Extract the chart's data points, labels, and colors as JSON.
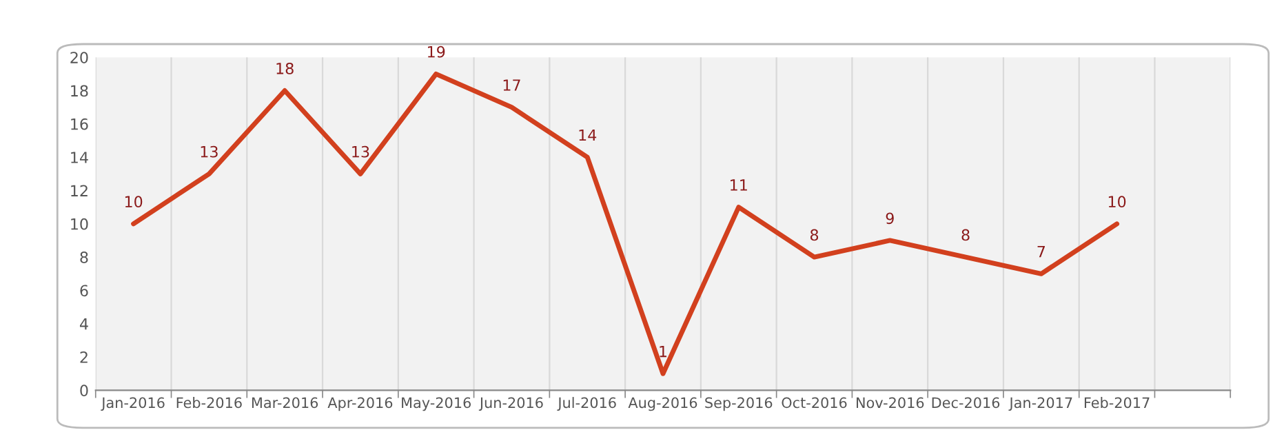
{
  "chart_data": {
    "type": "line",
    "categories": [
      "Jan-2016",
      "Feb-2016",
      "Mar-2016",
      "Apr-2016",
      "May-2016",
      "Jun-2016",
      "Jul-2016",
      "Aug-2016",
      "Sep-2016",
      "Oct-2016",
      "Nov-2016",
      "Dec-2016",
      "Jan-2017",
      "Feb-2017",
      null
    ],
    "series": [
      {
        "color": "#d2401e",
        "values": [
          10,
          13,
          18,
          13,
          19,
          17,
          14,
          1,
          11,
          8,
          9,
          8,
          7,
          10,
          null
        ]
      }
    ],
    "ylim": [
      0,
      20
    ],
    "yticks": [
      0,
      2,
      4,
      6,
      8,
      10,
      12,
      14,
      16,
      18,
      20
    ],
    "grid": "x",
    "data_labels": true,
    "marker": "none",
    "line_style": "solid"
  }
}
